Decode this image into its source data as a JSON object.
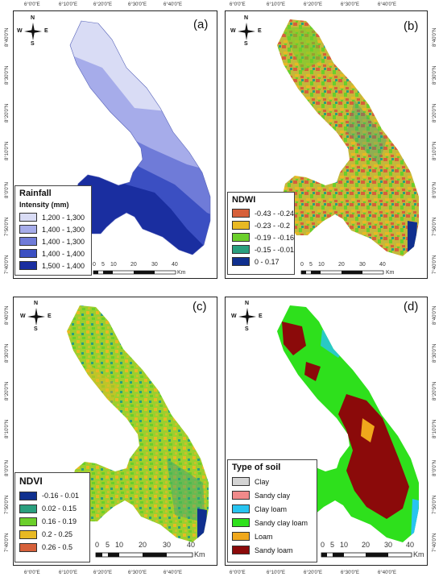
{
  "axis_labels": {
    "top": [
      "6°0'0\"E",
      "6°10'0\"E",
      "6°20'0\"E",
      "6°30'0\"E",
      "6°40'0\"E"
    ],
    "bottom": [
      "6°0'0\"E",
      "6°10'0\"E",
      "6°20'0\"E",
      "6°30'0\"E",
      "6°40'0\"E"
    ],
    "left": [
      "8°40'0\"N",
      "8°30'0\"N",
      "8°20'0\"N",
      "8°10'0\"N",
      "8°0'0\"N",
      "7°50'0\"N",
      "7°40'0\"N"
    ],
    "right": [
      "8°40'0\"N",
      "8°30'0\"N",
      "8°20'0\"N",
      "8°10'0\"N",
      "8°0'0\"N",
      "7°50'0\"N",
      "7°40'0\"N"
    ]
  },
  "compass": {
    "n": "N",
    "s": "S",
    "e": "E",
    "w": "W"
  },
  "scale": {
    "ticks": [
      "0",
      "5",
      "10",
      "20",
      "30",
      "40"
    ],
    "unit": "Km"
  },
  "panels": {
    "a": {
      "label": "(a)",
      "legend_title": "Rainfall",
      "legend_subtitle": "Intensity (mm)",
      "items": [
        {
          "label": "1,200 - 1,300",
          "color": "#d9dcf5"
        },
        {
          "label": "1,400 - 1,300",
          "color": "#a6acea"
        },
        {
          "label": "1,400 - 1,300",
          "color": "#6f7bd8"
        },
        {
          "label": "1,400 - 1,400",
          "color": "#3b4fc2"
        },
        {
          "label": "1,500 - 1,400",
          "color": "#1a2ea0"
        }
      ]
    },
    "b": {
      "label": "(b)",
      "legend_title": "NDWI",
      "items": [
        {
          "label": "-0.43 - -0.24",
          "color": "#d6603a"
        },
        {
          "label": "-0.23 - -0.2",
          "color": "#e8b923"
        },
        {
          "label": "-0.19 - -0.16",
          "color": "#6bcf2a"
        },
        {
          "label": "-0.15 - -0.01",
          "color": "#2a9f7e"
        },
        {
          "label": "0 - 0.17",
          "color": "#10308f"
        }
      ]
    },
    "c": {
      "label": "(c)",
      "legend_title": "NDVI",
      "items": [
        {
          "label": "-0.16 - 0.01",
          "color": "#10308f"
        },
        {
          "label": "0.02 - 0.15",
          "color": "#2a9f7e"
        },
        {
          "label": "0.16 - 0.19",
          "color": "#6bcf2a"
        },
        {
          "label": "0.2 - 0.25",
          "color": "#e8b923"
        },
        {
          "label": "0.26 - 0.5",
          "color": "#d6603a"
        }
      ]
    },
    "d": {
      "label": "(d)",
      "legend_title": "Type of soil",
      "items": [
        {
          "label": "Clay",
          "color": "#d4d4d4"
        },
        {
          "label": "Sandy clay",
          "color": "#f08a8a"
        },
        {
          "label": "Clay loam",
          "color": "#28c4f0"
        },
        {
          "label": "Sandy clay loam",
          "color": "#2ee01c"
        },
        {
          "label": "Loam",
          "color": "#f0a81c"
        },
        {
          "label": "Sandy loam",
          "color": "#8b0a0a"
        }
      ]
    }
  }
}
